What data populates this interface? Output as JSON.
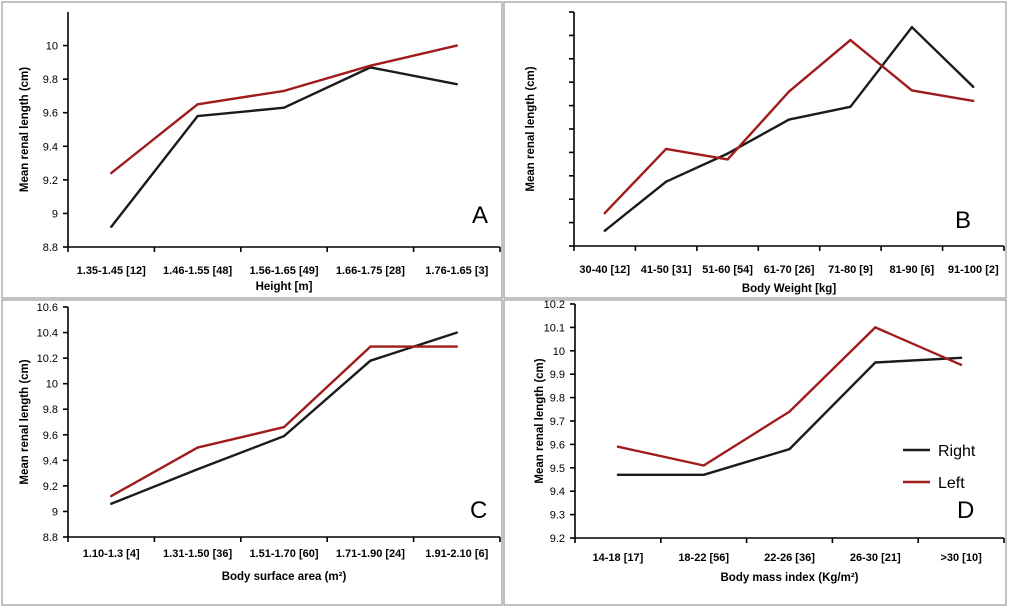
{
  "colors": {
    "right": "#1b1b1b",
    "left": "#a01c1c",
    "frame": "#9a9a9a"
  },
  "legend": {
    "right_label": "Right",
    "left_label": "Left",
    "placement": "middle-right of panel D"
  },
  "chart_data": [
    {
      "id": "A",
      "type": "line",
      "panel_label": "A",
      "xlabel": "Height [m]",
      "ylabel": "Mean renal length (cm)",
      "categories": [
        "1.35-1.45 [12]",
        "1.46-1.55 [48]",
        "1.56-1.65 [49]",
        "1.66-1.75 [28]",
        "1.76-1.65 [3]"
      ],
      "ylim": [
        8.8,
        10.2
      ],
      "yticks": [
        8.8,
        9,
        9.2,
        9.4,
        9.6,
        9.8,
        10
      ],
      "ytick_labels": [
        "8.8",
        "9",
        "9.2",
        "9.4",
        "9.6",
        "9.8",
        "10"
      ],
      "series": [
        {
          "name": "Right",
          "values": [
            8.92,
            9.58,
            9.63,
            9.87,
            9.77
          ]
        },
        {
          "name": "Left",
          "values": [
            9.24,
            9.65,
            9.73,
            9.88,
            10.0
          ]
        }
      ]
    },
    {
      "id": "B",
      "type": "line",
      "panel_label": "B",
      "xlabel": "Body Weight [kg]",
      "ylabel": "Mean renal length (cm)",
      "categories": [
        "30-40 [12]",
        "41-50 [31]",
        "51-60 [54]",
        "61-70 [26]",
        "71-80 [9]",
        "81-90 [6]",
        "91-100 [2]"
      ],
      "ylim": [
        8.8,
        10.8
      ],
      "yticks": [
        8.8,
        9.0,
        9.2,
        9.4,
        9.6,
        9.8,
        10.0,
        10.2,
        10.4,
        10.6,
        10.8
      ],
      "ytick_labels": [],
      "series": [
        {
          "name": "Right",
          "values": [
            8.93,
            9.35,
            9.59,
            9.88,
            9.99,
            10.67,
            10.16
          ]
        },
        {
          "name": "Left",
          "values": [
            9.08,
            9.63,
            9.54,
            10.12,
            10.56,
            10.13,
            10.04
          ]
        }
      ]
    },
    {
      "id": "C",
      "type": "line",
      "panel_label": "C",
      "xlabel": "Body surface area (m²)",
      "ylabel": "Mean renal length (cm)",
      "categories": [
        "1.10-1.3 [4]",
        "1.31-1.50 [36]",
        "1.51-1.70 [60]",
        "1.71-1.90 [24]",
        "1.91-2.10 [6]"
      ],
      "ylim": [
        8.8,
        10.6
      ],
      "yticks": [
        8.8,
        9,
        9.2,
        9.4,
        9.6,
        9.8,
        10,
        10.2,
        10.4,
        10.6
      ],
      "ytick_labels": [
        "8.8",
        "9",
        "9.2",
        "9.4",
        "9.6",
        "9.8",
        "10",
        "10.2",
        "10.4",
        "10.6"
      ],
      "series": [
        {
          "name": "Right",
          "values": [
            9.06,
            9.33,
            9.59,
            10.18,
            10.4
          ]
        },
        {
          "name": "Left",
          "values": [
            9.12,
            9.5,
            9.66,
            10.29,
            10.29
          ]
        }
      ]
    },
    {
      "id": "D",
      "type": "line",
      "panel_label": "D",
      "xlabel": "Body mass index (Kg/m²)",
      "ylabel": "Mean renal length (cm)",
      "categories": [
        "14-18 [17]",
        "18-22 [56]",
        "22-26 [36]",
        "26-30 [21]",
        ">30 [10]"
      ],
      "ylim": [
        9.2,
        10.2
      ],
      "yticks": [
        9.2,
        9.3,
        9.4,
        9.5,
        9.6,
        9.7,
        9.8,
        9.9,
        10,
        10.1,
        10.2
      ],
      "ytick_labels": [
        "9.2",
        "9.3",
        "9.4",
        "9.5",
        "9.6",
        "9.7",
        "9.8",
        "9.9",
        "10",
        "10.1",
        "10.2"
      ],
      "series": [
        {
          "name": "Right",
          "values": [
            9.47,
            9.47,
            9.58,
            9.95,
            9.97
          ]
        },
        {
          "name": "Left",
          "values": [
            9.59,
            9.51,
            9.74,
            10.1,
            9.94
          ]
        }
      ]
    }
  ]
}
